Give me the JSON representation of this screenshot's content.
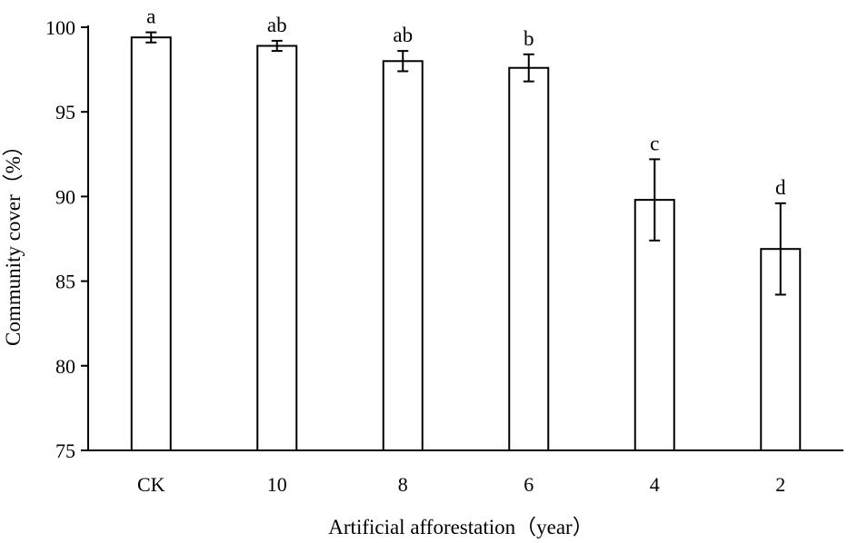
{
  "chart_data": {
    "type": "bar",
    "title": "",
    "xlabel": "Artificial afforestation（year）",
    "ylabel": "Community cover（%）",
    "ylim": [
      75,
      100
    ],
    "yticks": [
      75,
      80,
      85,
      90,
      95,
      100
    ],
    "categories": [
      "CK",
      "10",
      "8",
      "6",
      "4",
      "2"
    ],
    "values": [
      99.4,
      98.9,
      98.0,
      97.6,
      89.8,
      86.9
    ],
    "errors": [
      0.3,
      0.3,
      0.6,
      0.8,
      2.4,
      2.7
    ],
    "significance": [
      "a",
      "ab",
      "ab",
      "b",
      "c",
      "d"
    ],
    "bar_fill": "#ffffff",
    "stroke_color": "#000000",
    "grid": false,
    "legend": null
  }
}
